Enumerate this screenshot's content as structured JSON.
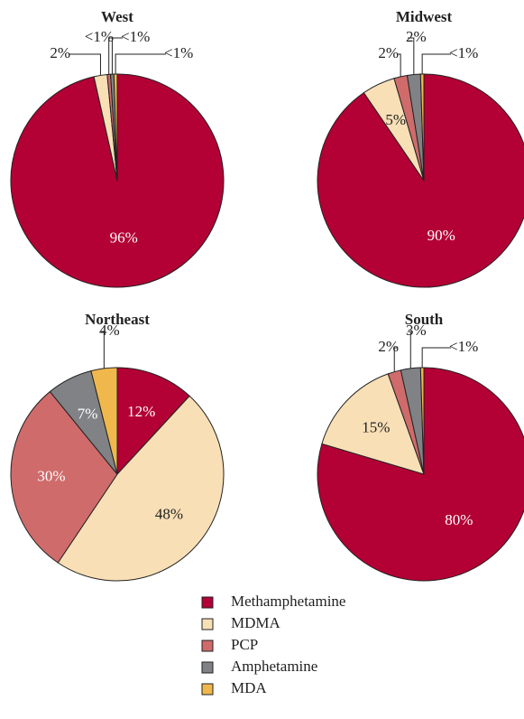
{
  "chart_data": [
    {
      "type": "pie",
      "title": "West",
      "categories": [
        "Methamphetamine",
        "MDMA",
        "PCP",
        "Amphetamine",
        "MDA"
      ],
      "colors": [
        "#b30035",
        "#f8dfb6",
        "#cf6b6b",
        "#808285",
        "#f0b84c"
      ],
      "values": [
        96,
        2,
        0.5,
        0.5,
        0.5
      ],
      "value_labels": [
        "96%",
        "2%",
        "<1%",
        "<1%",
        "<1%"
      ]
    },
    {
      "type": "pie",
      "title": "Midwest",
      "categories": [
        "Methamphetamine",
        "MDMA",
        "PCP",
        "Amphetamine",
        "MDA"
      ],
      "colors": [
        "#b30035",
        "#f8dfb6",
        "#cf6b6b",
        "#808285",
        "#f0b84c"
      ],
      "values": [
        90,
        5,
        2,
        2,
        0.5
      ],
      "value_labels": [
        "90%",
        "5%",
        "2%",
        "2%",
        "<1%"
      ]
    },
    {
      "type": "pie",
      "title": "Northeast",
      "categories": [
        "Methamphetamine",
        "MDMA",
        "PCP",
        "Amphetamine",
        "MDA"
      ],
      "colors": [
        "#b30035",
        "#f8dfb6",
        "#cf6b6b",
        "#808285",
        "#f0b84c"
      ],
      "values": [
        12,
        48,
        30,
        7,
        4
      ],
      "value_labels": [
        "12%",
        "48%",
        "30%",
        "7%",
        "4%"
      ]
    },
    {
      "type": "pie",
      "title": "South",
      "categories": [
        "Methamphetamine",
        "MDMA",
        "PCP",
        "Amphetamine",
        "MDA"
      ],
      "colors": [
        "#b30035",
        "#f8dfb6",
        "#cf6b6b",
        "#808285",
        "#f0b84c"
      ],
      "values": [
        80,
        15,
        2,
        3,
        0.5
      ],
      "value_labels": [
        "80%",
        "15%",
        "2%",
        "3%",
        "<1%"
      ]
    }
  ]
}
